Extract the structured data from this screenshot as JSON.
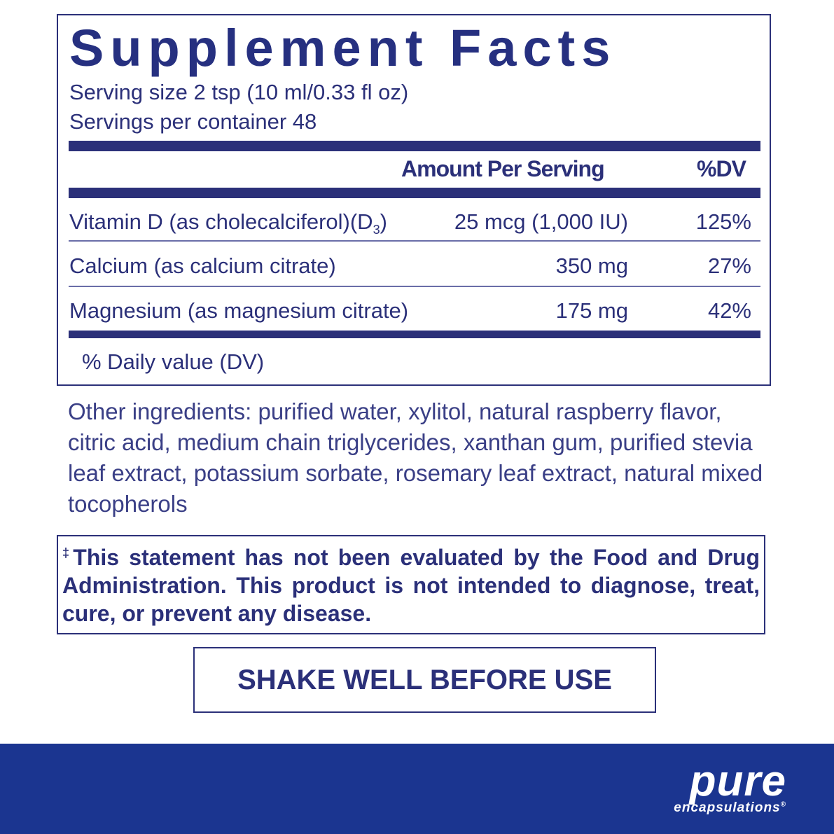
{
  "facts": {
    "title": "Supplement Facts",
    "serving_size": "Serving size  2 tsp (10 ml/0.33 fl oz)",
    "servings_per_container": "Servings per container  48",
    "header_amount": "Amount Per Serving",
    "header_dv": "%DV",
    "rows": [
      {
        "name": "Vitamin D (as cholecalciferol)(D",
        "sub": "3",
        "close": ")",
        "amount": "25 mcg (1,000 IU)",
        "dv": "125%"
      },
      {
        "name": "Calcium (as calcium citrate)",
        "amount": "350 mg",
        "dv": "27%"
      },
      {
        "name": "Magnesium (as magnesium citrate)",
        "amount": "175 mg",
        "dv": "42%"
      }
    ],
    "footnote": "% Daily value (DV)"
  },
  "other_ingredients": "Other ingredients: purified water, xylitol, natural raspberry flavor, citric acid, medium chain triglycerides, xanthan gum, purified stevia leaf extract, potassium sorbate, rosemary leaf extract, natural mixed tocopherols",
  "disclaimer": {
    "mark": "‡",
    "text": "This statement has not been evaluated by the Food and Drug Administration. This product is not intended to diagnose, treat, cure, or prevent any disease."
  },
  "shake_notice": "SHAKE WELL BEFORE USE",
  "brand": {
    "name": "pure",
    "sub": "encapsulations",
    "reg": "®"
  },
  "colors": {
    "text": "#2b3079",
    "band": "#1b3590"
  }
}
